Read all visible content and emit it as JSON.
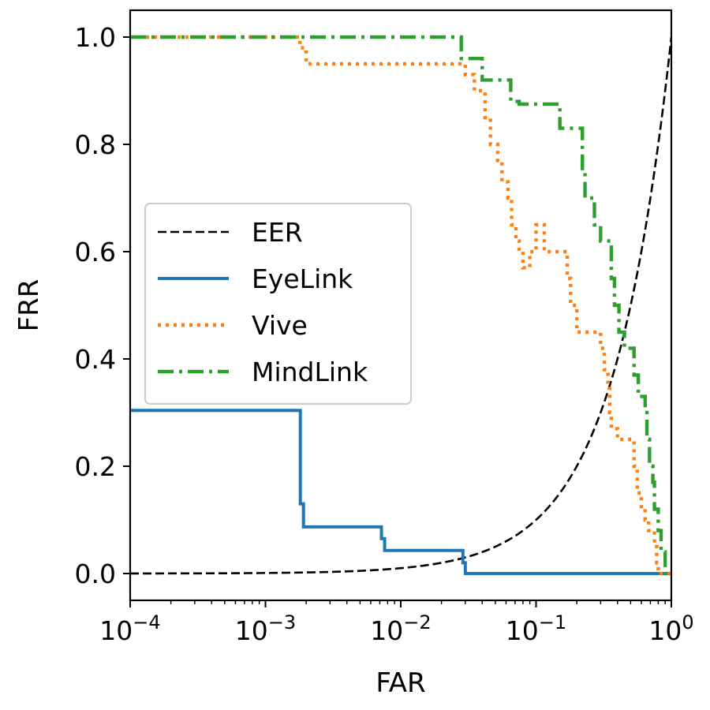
{
  "chart_data": {
    "type": "line",
    "title": "",
    "xlabel": "FAR",
    "ylabel": "FRR",
    "xscale": "log",
    "xlim": [
      0.0001,
      1
    ],
    "ylim": [
      -0.05,
      1.05
    ],
    "grid": false,
    "legend_position": "center-left",
    "x_ticks": [
      {
        "value": 0.0001,
        "base": "10",
        "exp": "−4"
      },
      {
        "value": 0.001,
        "base": "10",
        "exp": "−3"
      },
      {
        "value": 0.01,
        "base": "10",
        "exp": "−2"
      },
      {
        "value": 0.1,
        "base": "10",
        "exp": "−1"
      },
      {
        "value": 1,
        "base": "10",
        "exp": "0"
      }
    ],
    "y_ticks": [
      {
        "value": 0.0,
        "label": "0.0"
      },
      {
        "value": 0.2,
        "label": "0.2"
      },
      {
        "value": 0.4,
        "label": "0.4"
      },
      {
        "value": 0.6,
        "label": "0.6"
      },
      {
        "value": 0.8,
        "label": "0.8"
      },
      {
        "value": 1.0,
        "label": "1.0"
      }
    ],
    "series": [
      {
        "name": "EER",
        "color": "#000000",
        "style": "dashed",
        "function": "y = x",
        "x": [
          0.0001,
          0.0003,
          0.001,
          0.003,
          0.01,
          0.03,
          0.1,
          0.2,
          0.3,
          0.4,
          0.5,
          0.6,
          0.7,
          0.8,
          0.9,
          1.0
        ],
        "y": [
          0.0001,
          0.0003,
          0.001,
          0.003,
          0.01,
          0.03,
          0.1,
          0.2,
          0.3,
          0.4,
          0.5,
          0.6,
          0.7,
          0.8,
          0.9,
          1.0
        ]
      },
      {
        "name": "EyeLink",
        "color": "#1f77b4",
        "style": "solid",
        "x": [
          0.0001,
          0.00181,
          0.00181,
          0.00191,
          0.00191,
          0.0072,
          0.0072,
          0.0076,
          0.0076,
          0.0288,
          0.0288,
          0.03,
          0.03,
          1.0
        ],
        "y": [
          0.304,
          0.304,
          0.13,
          0.13,
          0.087,
          0.087,
          0.065,
          0.065,
          0.043,
          0.043,
          0.02,
          0.02,
          0.0,
          0.0
        ]
      },
      {
        "name": "Vive",
        "color": "#ff7f0e",
        "style": "dotted",
        "x": [
          0.0001,
          0.0018,
          0.0018,
          0.002,
          0.002,
          0.03,
          0.03,
          0.035,
          0.035,
          0.042,
          0.042,
          0.046,
          0.046,
          0.052,
          0.052,
          0.056,
          0.056,
          0.062,
          0.062,
          0.066,
          0.066,
          0.071,
          0.071,
          0.075,
          0.075,
          0.08,
          0.08,
          0.09,
          0.09,
          0.1,
          0.1,
          0.115,
          0.115,
          0.17,
          0.17,
          0.18,
          0.18,
          0.2,
          0.2,
          0.22,
          0.22,
          0.3,
          0.3,
          0.32,
          0.32,
          0.34,
          0.34,
          0.35,
          0.35,
          0.36,
          0.36,
          0.4,
          0.4,
          0.5,
          0.5,
          0.53,
          0.53,
          0.56,
          0.56,
          0.6,
          0.6,
          0.64,
          0.64,
          0.68,
          0.68,
          0.75,
          0.75,
          0.78,
          0.78,
          0.8,
          0.8,
          0.85,
          0.85,
          1.0
        ],
        "y": [
          1.0,
          1.0,
          0.98,
          0.98,
          0.95,
          0.95,
          0.93,
          0.93,
          0.9,
          0.9,
          0.85,
          0.85,
          0.8,
          0.8,
          0.77,
          0.77,
          0.73,
          0.73,
          0.7,
          0.7,
          0.65,
          0.65,
          0.62,
          0.62,
          0.6,
          0.6,
          0.57,
          0.57,
          0.6,
          0.6,
          0.65,
          0.65,
          0.6,
          0.6,
          0.55,
          0.55,
          0.5,
          0.5,
          0.45,
          0.45,
          0.45,
          0.45,
          0.42,
          0.42,
          0.38,
          0.38,
          0.35,
          0.35,
          0.3,
          0.3,
          0.27,
          0.27,
          0.25,
          0.25,
          0.25,
          0.25,
          0.2,
          0.2,
          0.15,
          0.15,
          0.12,
          0.12,
          0.1,
          0.1,
          0.08,
          0.08,
          0.05,
          0.05,
          0.02,
          0.02,
          0.0,
          0.0,
          0.0,
          0.0
        ]
      },
      {
        "name": "MindLink",
        "color": "#2ca02c",
        "style": "dashdot",
        "x": [
          0.0001,
          0.028,
          0.028,
          0.04,
          0.04,
          0.065,
          0.065,
          0.075,
          0.075,
          0.15,
          0.15,
          0.22,
          0.22,
          0.23,
          0.23,
          0.27,
          0.27,
          0.3,
          0.3,
          0.36,
          0.36,
          0.38,
          0.38,
          0.41,
          0.41,
          0.45,
          0.45,
          0.53,
          0.53,
          0.57,
          0.57,
          0.64,
          0.64,
          0.66,
          0.66,
          0.69,
          0.69,
          0.73,
          0.73,
          0.75,
          0.75,
          0.8,
          0.8,
          0.84,
          0.84,
          0.9,
          0.9,
          1.0
        ],
        "y": [
          1.0,
          1.0,
          0.96,
          0.96,
          0.92,
          0.92,
          0.88,
          0.88,
          0.875,
          0.875,
          0.83,
          0.83,
          0.75,
          0.75,
          0.7,
          0.7,
          0.65,
          0.65,
          0.62,
          0.62,
          0.55,
          0.55,
          0.5,
          0.5,
          0.45,
          0.45,
          0.42,
          0.42,
          0.37,
          0.37,
          0.33,
          0.33,
          0.3,
          0.3,
          0.25,
          0.25,
          0.2,
          0.2,
          0.17,
          0.17,
          0.12,
          0.12,
          0.08,
          0.08,
          0.04,
          0.04,
          0.0,
          0.0
        ]
      }
    ]
  }
}
